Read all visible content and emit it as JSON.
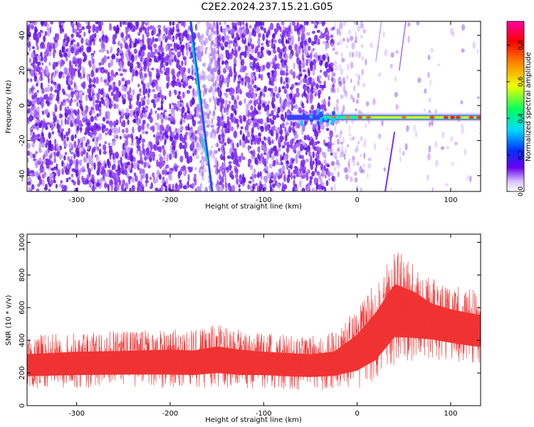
{
  "title": "C2E2.2024.237.15.21.G05",
  "colors": {
    "snr_line": "#f03232",
    "background": "#ffffff",
    "axis": "#000000"
  },
  "chart_data": [
    {
      "type": "heatmap",
      "xlabel": "Height of straight line (km)",
      "ylabel": "Frequency (Hz)",
      "xlim": [
        -353,
        132
      ],
      "ylim": [
        -49,
        48
      ],
      "x_ticks": [
        -300,
        -200,
        -100,
        0,
        100
      ],
      "y_ticks": [
        40,
        20,
        0,
        -20,
        -40
      ],
      "grid": false,
      "colorbar": {
        "label": "Normalized spectral amplitude",
        "range": [
          0,
          0.93
        ],
        "ticks": [
          "0.0",
          "0.2",
          "0.4",
          "0.6",
          "0.8"
        ],
        "colormap": "white-purple-blue-cyan-green-yellow-red-magenta"
      },
      "features": [
        {
          "name": "carrier",
          "x_range": [
            -75,
            132
          ],
          "frequency": -7,
          "amplitude_peak": 0.9
        },
        {
          "name": "streak-1",
          "x_range": [
            -178,
            -155
          ],
          "frequency_range": [
            48,
            -49
          ]
        },
        {
          "name": "streak-2",
          "x_range": [
            30,
            40
          ],
          "frequency_range": [
            -15,
            -49
          ]
        }
      ]
    },
    {
      "type": "line",
      "xlabel": "Height of straight line (km)",
      "ylabel": "SNR (10 * v/v)",
      "xlim": [
        -353,
        132
      ],
      "ylim": [
        0,
        1050
      ],
      "x_ticks": [
        -300,
        -200,
        -100,
        0,
        100
      ],
      "y_ticks": [
        0,
        200,
        400,
        600,
        800,
        1000
      ],
      "grid": false,
      "series": [
        {
          "envelope_x": [
            -353,
            -300,
            -250,
            -200,
            -175,
            -150,
            -125,
            -100,
            -75,
            -50,
            -25,
            0,
            20,
            40,
            60,
            80,
            100,
            120,
            132
          ],
          "envelope_low": [
            100,
            105,
            110,
            105,
            100,
            115,
            100,
            105,
            95,
            90,
            95,
            100,
            120,
            250,
            250,
            280,
            270,
            260,
            250
          ],
          "envelope_mid": [
            240,
            250,
            250,
            255,
            255,
            265,
            255,
            250,
            245,
            240,
            250,
            310,
            420,
            570,
            560,
            510,
            480,
            455,
            450
          ],
          "envelope_high": [
            430,
            450,
            460,
            470,
            460,
            500,
            470,
            450,
            440,
            430,
            450,
            600,
            760,
            960,
            880,
            780,
            740,
            720,
            700
          ]
        }
      ]
    }
  ]
}
